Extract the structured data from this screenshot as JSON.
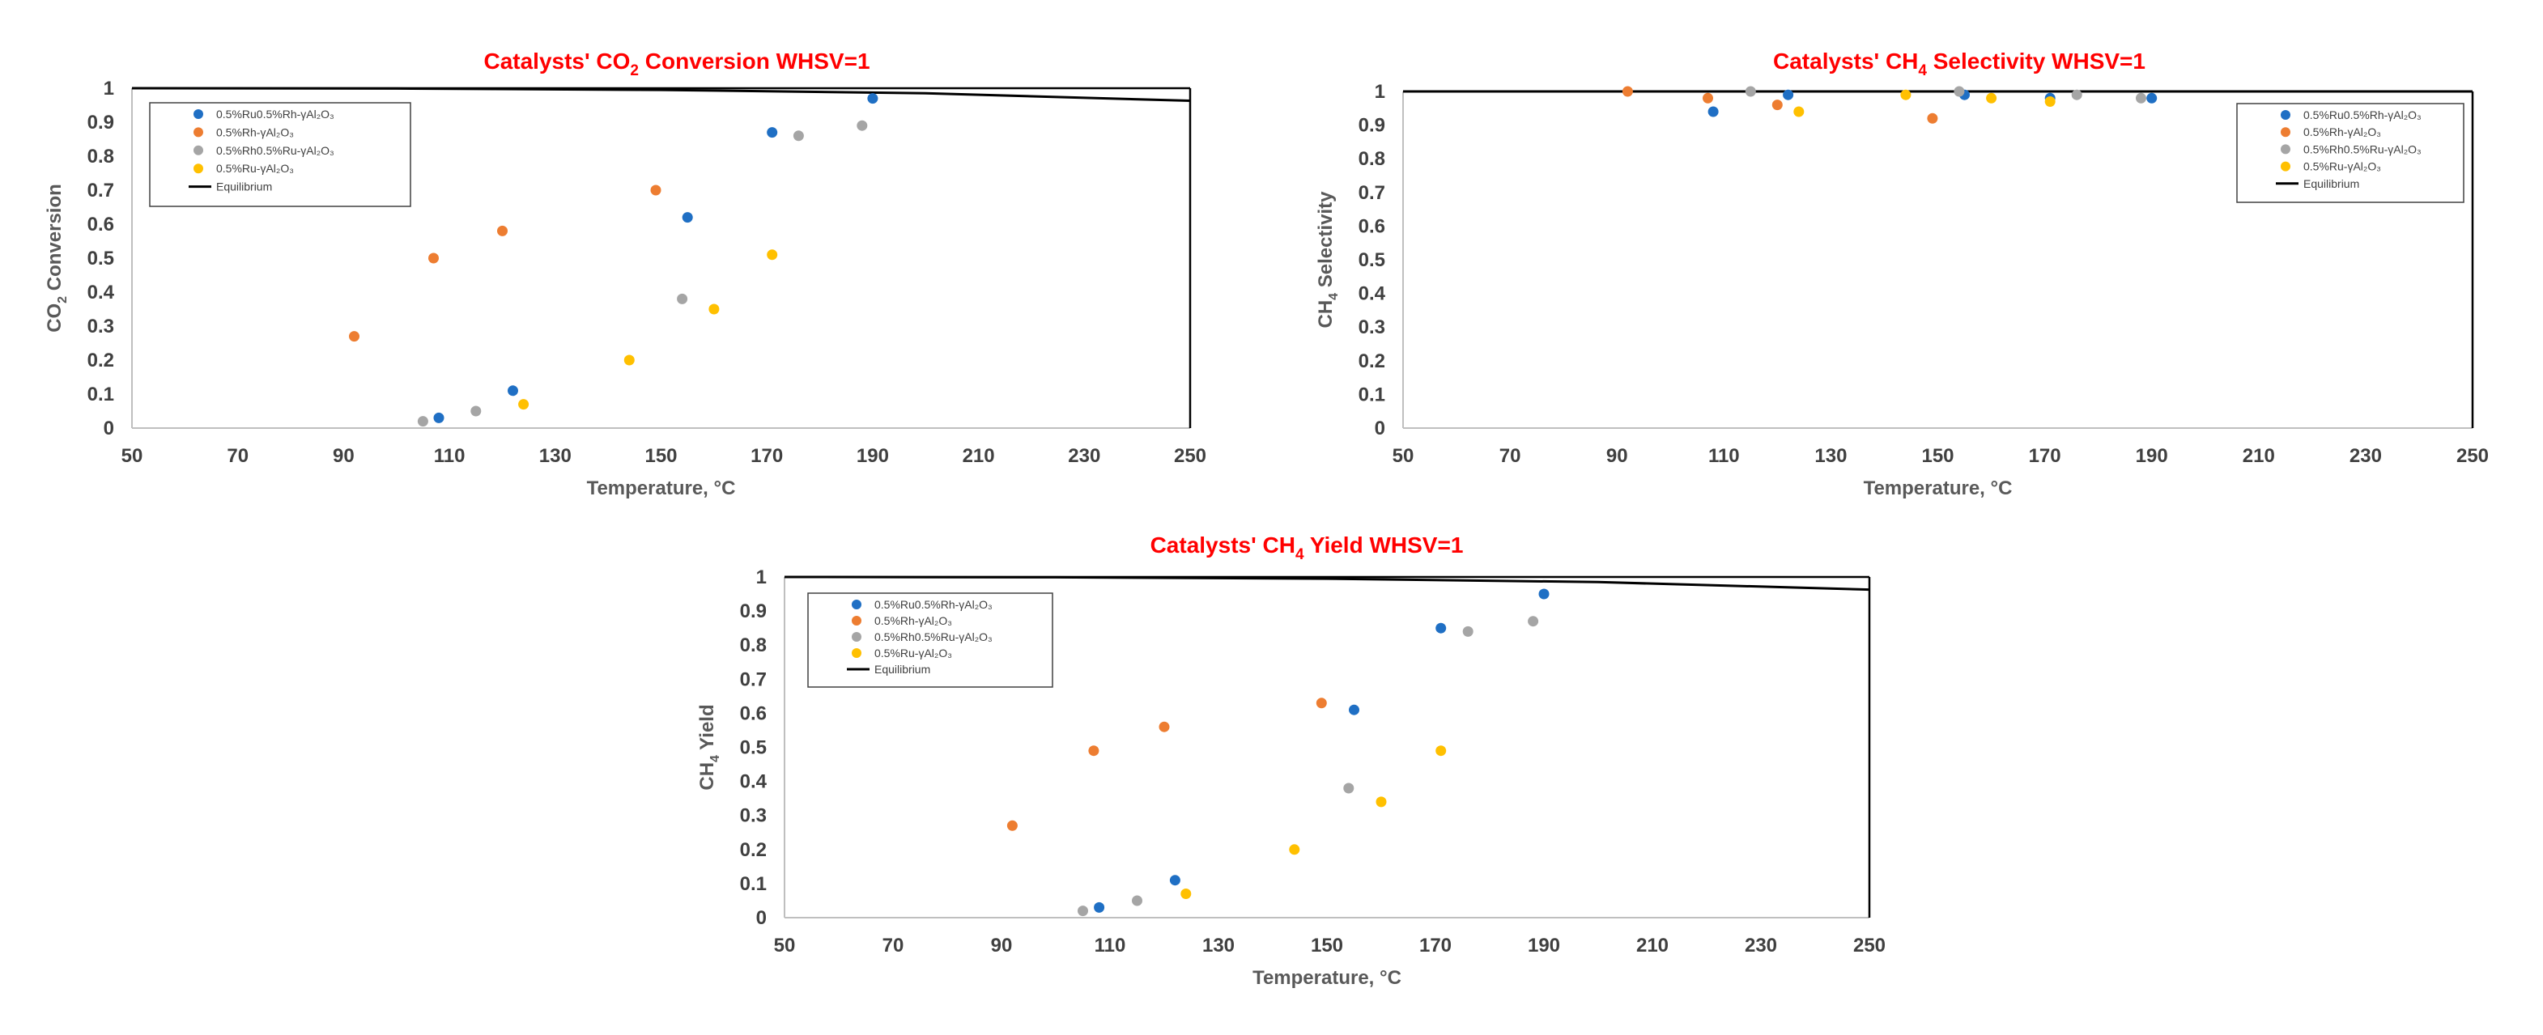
{
  "colors": {
    "title": "#ff0000",
    "series": [
      "#1f6fc4",
      "#ed7d31",
      "#a5a5a5",
      "#ffc000"
    ],
    "equilibrium": "#000000"
  },
  "legend_entries": [
    {
      "name": "0.5%Ru0.5%Rh-γAl₂O₃",
      "marker": "point"
    },
    {
      "name": "0.5%Rh-γAl₂O₃",
      "marker": "point"
    },
    {
      "name": "0.5%Rh0.5%Ru-γAl₂O₃",
      "marker": "point"
    },
    {
      "name": "0.5%Ru-γAl₂O₃",
      "marker": "point"
    },
    {
      "name": "Equilibrium",
      "marker": "line"
    }
  ],
  "chart_data": [
    {
      "id": "co2-conversion",
      "type": "scatter",
      "title_pre": "Catalysts' CO",
      "title_sub": "2",
      "title_post": " Conversion WHSV=1",
      "xlabel": "Temperature, °C",
      "ylabel_pre": "CO",
      "ylabel_sub": "2",
      "ylabel_post": " Conversion",
      "xlim": [
        50,
        250
      ],
      "ylim": [
        0,
        1
      ],
      "xticks": [
        "50",
        "70",
        "90",
        "110",
        "130",
        "150",
        "170",
        "190",
        "210",
        "230",
        "250"
      ],
      "yticks": [
        "0",
        "0.1",
        "0.2",
        "0.3",
        "0.4",
        "0.5",
        "0.6",
        "0.7",
        "0.8",
        "0.9",
        "1"
      ],
      "legend_position": "top-left",
      "series": [
        {
          "name": "0.5%Ru0.5%Rh-γAl₂O₃",
          "x": [
            108,
            122,
            155,
            171,
            190
          ],
          "y": [
            0.03,
            0.11,
            0.62,
            0.87,
            0.97
          ]
        },
        {
          "name": "0.5%Rh-γAl₂O₃",
          "x": [
            92,
            107,
            120,
            149
          ],
          "y": [
            0.27,
            0.5,
            0.58,
            0.7
          ]
        },
        {
          "name": "0.5%Rh0.5%Ru-γAl₂O₃",
          "x": [
            105,
            115,
            154,
            176,
            188
          ],
          "y": [
            0.02,
            0.05,
            0.38,
            0.86,
            0.89
          ]
        },
        {
          "name": "0.5%Ru-γAl₂O₃",
          "x": [
            124,
            144,
            160,
            171
          ],
          "y": [
            0.07,
            0.2,
            0.35,
            0.51
          ]
        }
      ],
      "equilibrium": {
        "x": [
          50,
          100,
          150,
          200,
          250
        ],
        "y": [
          1.0,
          0.999,
          0.995,
          0.985,
          0.963
        ]
      }
    },
    {
      "id": "ch4-selectivity",
      "type": "scatter",
      "title_pre": "Catalysts' CH",
      "title_sub": "4",
      "title_post": " Selectivity WHSV=1",
      "xlabel": "Temperature, °C",
      "ylabel_pre": "CH",
      "ylabel_sub": "4",
      "ylabel_post": " Selectivity",
      "xlim": [
        50,
        250
      ],
      "ylim": [
        0,
        1
      ],
      "xticks": [
        "50",
        "70",
        "90",
        "110",
        "130",
        "150",
        "170",
        "190",
        "210",
        "230",
        "250"
      ],
      "yticks": [
        "0",
        "0.1",
        "0.2",
        "0.3",
        "0.4",
        "0.5",
        "0.6",
        "0.7",
        "0.8",
        "0.9",
        "1"
      ],
      "legend_position": "top-right",
      "series": [
        {
          "name": "0.5%Ru0.5%Rh-γAl₂O₃",
          "x": [
            108,
            122,
            155,
            171,
            190
          ],
          "y": [
            0.94,
            0.99,
            0.99,
            0.98,
            0.98
          ]
        },
        {
          "name": "0.5%Rh-γAl₂O₃",
          "x": [
            92,
            107,
            120,
            149
          ],
          "y": [
            1.0,
            0.98,
            0.96,
            0.92
          ]
        },
        {
          "name": "0.5%Rh0.5%Ru-γAl₂O₃",
          "x": [
            115,
            154,
            176,
            188
          ],
          "y": [
            1.0,
            1.0,
            0.99,
            0.98
          ]
        },
        {
          "name": "0.5%Ru-γAl₂O₃",
          "x": [
            124,
            144,
            160,
            171
          ],
          "y": [
            0.94,
            0.99,
            0.98,
            0.97
          ]
        }
      ],
      "equilibrium": {
        "x": [
          50,
          250
        ],
        "y": [
          1.0,
          1.0
        ]
      }
    },
    {
      "id": "ch4-yield",
      "type": "scatter",
      "title_pre": "Catalysts' CH",
      "title_sub": "4",
      "title_post": " Yield WHSV=1",
      "xlabel": "Temperature, °C",
      "ylabel_pre": "CH",
      "ylabel_sub": "4",
      "ylabel_post": " Yield",
      "xlim": [
        50,
        250
      ],
      "ylim": [
        0,
        1
      ],
      "xticks": [
        "50",
        "70",
        "90",
        "110",
        "130",
        "150",
        "170",
        "190",
        "210",
        "230",
        "250"
      ],
      "yticks": [
        "0",
        "0.1",
        "0.2",
        "0.3",
        "0.4",
        "0.5",
        "0.6",
        "0.7",
        "0.8",
        "0.9",
        "1"
      ],
      "legend_position": "top-left",
      "series": [
        {
          "name": "0.5%Ru0.5%Rh-γAl₂O₃",
          "x": [
            108,
            122,
            155,
            171,
            190
          ],
          "y": [
            0.03,
            0.11,
            0.61,
            0.85,
            0.95
          ]
        },
        {
          "name": "0.5%Rh-γAl₂O₃",
          "x": [
            92,
            107,
            120,
            149
          ],
          "y": [
            0.27,
            0.49,
            0.56,
            0.63
          ]
        },
        {
          "name": "0.5%Rh0.5%Ru-γAl₂O₃",
          "x": [
            105,
            115,
            154,
            176,
            188
          ],
          "y": [
            0.02,
            0.05,
            0.38,
            0.84,
            0.87
          ]
        },
        {
          "name": "0.5%Ru-γAl₂O₃",
          "x": [
            124,
            144,
            160,
            171
          ],
          "y": [
            0.07,
            0.2,
            0.34,
            0.49
          ]
        }
      ],
      "equilibrium": {
        "x": [
          50,
          100,
          150,
          200,
          250
        ],
        "y": [
          1.0,
          0.999,
          0.995,
          0.985,
          0.963
        ]
      }
    }
  ]
}
